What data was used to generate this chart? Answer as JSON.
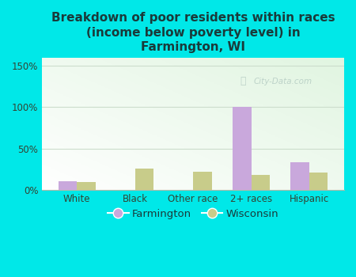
{
  "title": "Breakdown of poor residents within races\n(income below poverty level) in\nFarmington, WI",
  "categories": [
    "White",
    "Black",
    "Other race",
    "2+ races",
    "Hispanic"
  ],
  "farmington_values": [
    11,
    0,
    0,
    100,
    33
  ],
  "wisconsin_values": [
    10,
    26,
    22,
    18,
    21
  ],
  "farmington_color": "#c9a8dc",
  "wisconsin_color": "#c8cc8a",
  "background_color": "#00e8e8",
  "title_color": "#1a3a3a",
  "yticks": [
    0,
    50,
    100,
    150
  ],
  "ytick_labels": [
    "0%",
    "50%",
    "100%",
    "150%"
  ],
  "ylim": [
    0,
    160
  ],
  "bar_width": 0.32,
  "title_fontsize": 11,
  "tick_fontsize": 8.5,
  "legend_fontsize": 9.5,
  "watermark_text": "City-Data.com",
  "watermark_alpha": 0.38
}
